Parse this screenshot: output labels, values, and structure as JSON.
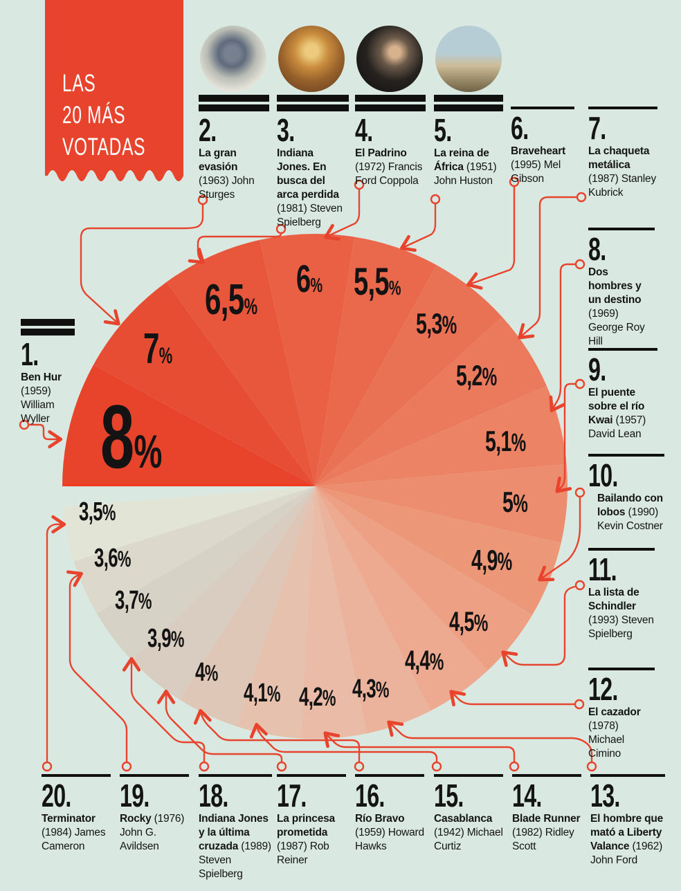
{
  "meta": {
    "background_color": "#d9e9e1",
    "accent_red": "#e8432c",
    "ink_color": "#141414",
    "edge_highlight": "#f5381f"
  },
  "banner": {
    "lines": [
      "LAS",
      "20 MÁS",
      "VOTADAS"
    ]
  },
  "chart_data": {
    "type": "pie",
    "title": "LAS 20 MÁS VOTADAS",
    "unit": "%",
    "start_angle_deg": 180,
    "direction": "clockwise",
    "legend_position": "around",
    "labels": [
      "Ben Hur",
      "La gran evasión",
      "Indiana Jones. En busca del arca perdida",
      "El Padrino",
      "La reina de África",
      "Braveheart",
      "La chaqueta metálica",
      "Dos hombres y un destino",
      "El puente sobre el río Kwai",
      "Bailando con lobos",
      "La lista de Schindler",
      "El cazador",
      "El hombre que mató a Liberty Valance",
      "Blade Runner",
      "Casablanca",
      "Río Bravo",
      "La princesa prometida",
      "Indiana Jones y la última cruzada",
      "Rocky",
      "Terminator"
    ],
    "values": [
      8,
      7,
      6.5,
      6,
      5.5,
      5.3,
      5.2,
      5.1,
      5,
      4.9,
      4.5,
      4.4,
      4.3,
      4.2,
      4.1,
      4,
      3.9,
      3.7,
      3.6,
      3.5
    ],
    "display_values": [
      "8%",
      "7%",
      "6,5%",
      "6%",
      "5,5%",
      "5,3%",
      "5,2%",
      "5,1%",
      "5%",
      "4,9%",
      "4,5%",
      "4,4%",
      "4,3%",
      "4,2%",
      "4,1%",
      "4%",
      "3,9%",
      "3,7%",
      "3,6%",
      "3,5%"
    ],
    "colors": [
      "#e8432b",
      "#e74d33",
      "#e8573c",
      "#e96045",
      "#ea694d",
      "#ea7254",
      "#eb7a5c",
      "#ec8365",
      "#ed8d6f",
      "#ed9779",
      "#eea084",
      "#edaa90",
      "#ecb39c",
      "#eabba6",
      "#e5c1ae",
      "#dfc7b7",
      "#d9ccc0",
      "#d7d2c6",
      "#dcd9cc",
      "#e2e4d6"
    ]
  },
  "movies": [
    {
      "rank": 1,
      "num": "1.",
      "title": "Ben Hur",
      "year": "(1959)",
      "director": "William Wyller",
      "pct": "8%"
    },
    {
      "rank": 2,
      "num": "2.",
      "title": "La gran evasión",
      "year": "(1963)",
      "director": "John Sturges",
      "pct": "7%"
    },
    {
      "rank": 3,
      "num": "3.",
      "title": "Indiana Jones. En busca del arca perdida",
      "year": "(1981)",
      "director": "Steven Spielberg",
      "pct": "6,5%"
    },
    {
      "rank": 4,
      "num": "4.",
      "title": "El Padrino",
      "year": "(1972)",
      "director": "Francis Ford Coppola",
      "pct": "6%"
    },
    {
      "rank": 5,
      "num": "5.",
      "title": "La reina de África",
      "year": "(1951)",
      "director": "John Huston",
      "pct": "5,5%"
    },
    {
      "rank": 6,
      "num": "6.",
      "title": "Braveheart",
      "year": "(1995)",
      "director": "Mel Gibson",
      "pct": "5,3%"
    },
    {
      "rank": 7,
      "num": "7.",
      "title": "La chaqueta metálica",
      "year": "(1987)",
      "director": "Stanley Kubrick",
      "pct": "5,2%"
    },
    {
      "rank": 8,
      "num": "8.",
      "title": "Dos hombres y un destino",
      "year": "(1969)",
      "director": "George Roy Hill",
      "pct": "5,1%"
    },
    {
      "rank": 9,
      "num": "9.",
      "title": "El puente sobre el río Kwai",
      "year": "(1957)",
      "director": "David Lean",
      "pct": "5%"
    },
    {
      "rank": 10,
      "num": "10.",
      "title": "Bailando con lobos",
      "year": "(1990)",
      "director": "Kevin Costner",
      "pct": "4,9%"
    },
    {
      "rank": 11,
      "num": "11.",
      "title": "La lista de Schindler",
      "year": "(1993)",
      "director": "Steven Spielberg",
      "pct": "4,5%"
    },
    {
      "rank": 12,
      "num": "12.",
      "title": "El cazador",
      "year": "(1978)",
      "director": "Michael Cimino",
      "pct": "4,4%"
    },
    {
      "rank": 13,
      "num": "13.",
      "title": "El hombre que mató a Liberty Valance",
      "year": "(1962)",
      "director": "John Ford",
      "pct": "4,3%"
    },
    {
      "rank": 14,
      "num": "14.",
      "title": "Blade Runner",
      "year": "(1982)",
      "director": "Ridley Scott",
      "pct": "4,2%"
    },
    {
      "rank": 15,
      "num": "15.",
      "title": "Casablanca",
      "year": "(1942)",
      "director": "Michael Curtiz",
      "pct": "4,1%"
    },
    {
      "rank": 16,
      "num": "16.",
      "title": "Río Bravo",
      "year": "(1959)",
      "director": "Howard Hawks",
      "pct": "4%"
    },
    {
      "rank": 17,
      "num": "17.",
      "title": "La princesa prometida",
      "year": "(1987)",
      "director": "Rob Reiner",
      "pct": "3,9%"
    },
    {
      "rank": 18,
      "num": "18.",
      "title": "Indiana Jones y la última cruzada",
      "year": "(1989)",
      "director": "Steven Spielberg",
      "pct": "3,7%"
    },
    {
      "rank": 19,
      "num": "19.",
      "title": "Rocky",
      "year": "(1976)",
      "director": "John G. Avildsen",
      "pct": "3,6%"
    },
    {
      "rank": 20,
      "num": "20.",
      "title": "Terminator",
      "year": "(1984)",
      "director": "James Cameron",
      "pct": "3,5%"
    }
  ]
}
